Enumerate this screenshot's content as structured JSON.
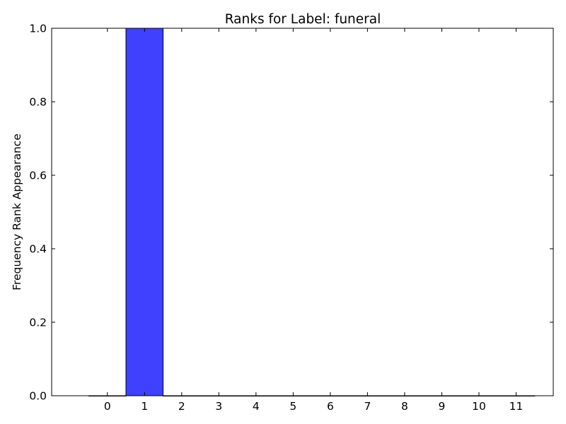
{
  "chart_data": {
    "type": "bar",
    "title": "Ranks for Label: funeral",
    "xlabel": "",
    "ylabel": "Frequency Rank Appearance",
    "categories": [
      "0",
      "1",
      "2",
      "3",
      "4",
      "5",
      "6",
      "7",
      "8",
      "9",
      "10",
      "11"
    ],
    "values": [
      0,
      1,
      0,
      0,
      0,
      0,
      0,
      0,
      0,
      0,
      0,
      0
    ],
    "xlim": [
      -1.5,
      12
    ],
    "ylim": [
      0,
      1
    ],
    "yticks": [
      0,
      0.2,
      0.4,
      0.6,
      0.8,
      1
    ],
    "ytick_labels": [
      "0.0",
      "0.2",
      "0.4",
      "0.6",
      "0.8",
      "1.0"
    ],
    "bar_width": 1,
    "bar_color": "#4040ff",
    "bar_edge_color": "#000000",
    "grid": false,
    "legend": "none"
  }
}
